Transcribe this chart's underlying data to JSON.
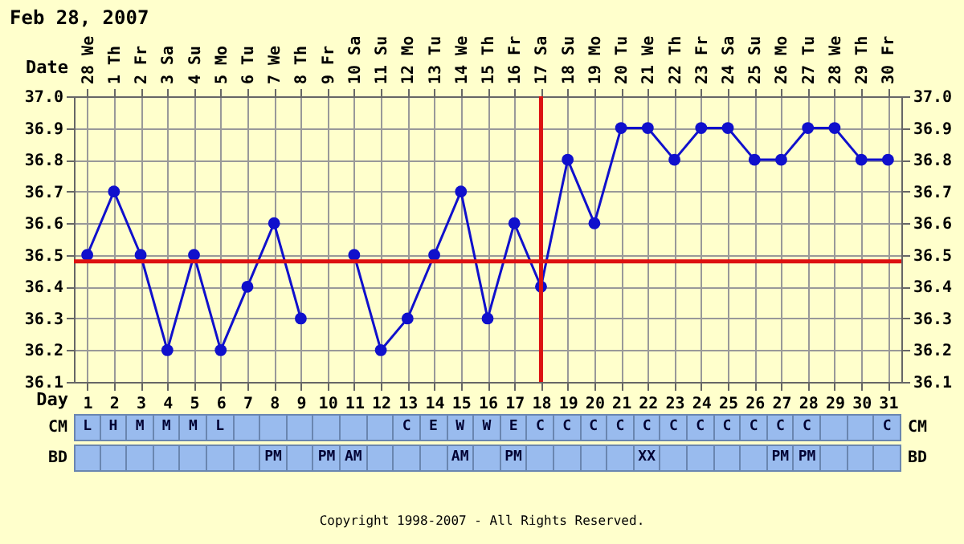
{
  "chart_data": [
    {
      "type": "line",
      "title": "Feb 28, 2007",
      "xlabel": "Day",
      "x2label": "Date",
      "x": [
        1,
        2,
        3,
        4,
        5,
        6,
        7,
        8,
        9,
        10,
        11,
        12,
        13,
        14,
        15,
        16,
        17,
        18,
        19,
        20,
        21,
        22,
        23,
        24,
        25,
        26,
        27,
        28,
        29,
        30,
        31
      ],
      "series": [
        {
          "color": "#1010cc",
          "values": [
            36.5,
            36.7,
            36.5,
            36.2,
            36.5,
            36.2,
            36.4,
            36.6,
            36.3,
            null,
            36.5,
            36.2,
            36.3,
            36.5,
            36.7,
            36.3,
            36.6,
            36.4,
            36.8,
            36.6,
            36.9,
            36.9,
            36.8,
            36.9,
            36.9,
            36.8,
            36.8,
            36.9,
            36.9,
            36.8,
            36.8
          ]
        }
      ],
      "xlim": [
        0.5,
        31.5
      ],
      "xticks": [
        1,
        2,
        3,
        4,
        5,
        6,
        7,
        8,
        9,
        10,
        11,
        12,
        13,
        14,
        15,
        16,
        17,
        18,
        19,
        20,
        21,
        22,
        23,
        24,
        25,
        26,
        27,
        28,
        29,
        30,
        31
      ],
      "x2lim": [
        "2007-02-27T12:00",
        "2007-03-30T12:00"
      ],
      "x2ticks": [
        {
          "value": "2007-02-28",
          "label": "28 We"
        },
        {
          "value": "2007-03-01",
          "label": "1 Th"
        },
        {
          "value": "2007-03-02",
          "label": "2 Fr"
        },
        {
          "value": "2007-03-03",
          "label": "3 Sa"
        },
        {
          "value": "2007-03-04",
          "label": "4 Su"
        },
        {
          "value": "2007-03-05",
          "label": "5 Mo"
        },
        {
          "value": "2007-03-06",
          "label": "6 Tu"
        },
        {
          "value": "2007-03-07",
          "label": "7 We"
        },
        {
          "value": "2007-03-08",
          "label": "8 Th"
        },
        {
          "value": "2007-03-09",
          "label": "9 Fr"
        },
        {
          "value": "2007-03-10",
          "label": "10 Sa"
        },
        {
          "value": "2007-03-11",
          "label": "11 Su"
        },
        {
          "value": "2007-03-12",
          "label": "12 Mo"
        },
        {
          "value": "2007-03-13",
          "label": "13 Tu"
        },
        {
          "value": "2007-03-14",
          "label": "14 We"
        },
        {
          "value": "2007-03-15",
          "label": "15 Th"
        },
        {
          "value": "2007-03-16",
          "label": "16 Fr"
        },
        {
          "value": "2007-03-17",
          "label": "17 Sa"
        },
        {
          "value": "2007-03-18",
          "label": "18 Su"
        },
        {
          "value": "2007-03-19",
          "label": "19 Mo"
        },
        {
          "value": "2007-03-20",
          "label": "20 Tu"
        },
        {
          "value": "2007-03-21",
          "label": "21 We"
        },
        {
          "value": "2007-03-22",
          "label": "22 Th"
        },
        {
          "value": "2007-03-23",
          "label": "23 Fr"
        },
        {
          "value": "2007-03-24",
          "label": "24 Sa"
        },
        {
          "value": "2007-03-25",
          "label": "25 Su"
        },
        {
          "value": "2007-03-26",
          "label": "26 Mo"
        },
        {
          "value": "2007-03-27",
          "label": "27 Tu"
        },
        {
          "value": "2007-03-28",
          "label": "28 We"
        },
        {
          "value": "2007-03-29",
          "label": "29 Th"
        },
        {
          "value": "2007-03-30",
          "label": "30 Fr"
        }
      ],
      "ylim": [
        36.1,
        37.0
      ],
      "yticks": [
        36.1,
        36.2,
        36.3,
        36.4,
        36.5,
        36.6,
        36.7,
        36.8,
        36.9,
        {
          "value": 37.0,
          "label": "37.0"
        }
      ],
      "y2lim": [
        36.1,
        37.0
      ],
      "y2ticks": [
        36.1,
        36.2,
        36.3,
        36.4,
        36.5,
        36.6,
        36.7,
        36.8,
        36.9,
        {
          "value": 37.0,
          "label": "37.0"
        }
      ],
      "ref_lines": [
        {
          "axis": "y",
          "value": 36.48,
          "color": "#dd1111"
        },
        {
          "axis": "x",
          "value": 18,
          "color": "#dd1111"
        }
      ],
      "grid": true,
      "marker": "circle",
      "line_style": "solid"
    },
    {
      "type": "other",
      "y_categories": [
        "CM",
        "BD"
      ],
      "y2_categories": [
        "CM",
        "BD"
      ],
      "cell_labels": [
        [
          "L",
          "H",
          "M",
          "M",
          "M",
          "L",
          null,
          null,
          null,
          null,
          null,
          null,
          "C",
          "E",
          "W",
          "W",
          "E",
          "C",
          "C",
          "C",
          "C",
          "C",
          "C",
          "C",
          "C",
          "C",
          "C",
          "C",
          null,
          null,
          "C"
        ],
        [
          null,
          null,
          null,
          null,
          null,
          null,
          null,
          "PM",
          null,
          "PM",
          "AM",
          null,
          null,
          null,
          "AM",
          null,
          "PM",
          null,
          null,
          null,
          null,
          "XX",
          null,
          null,
          null,
          null,
          "PM",
          "PM",
          null,
          null,
          null
        ]
      ],
      "annotations": [
        "Copyright 1998-2007 - All Rights Reserved."
      ]
    }
  ]
}
